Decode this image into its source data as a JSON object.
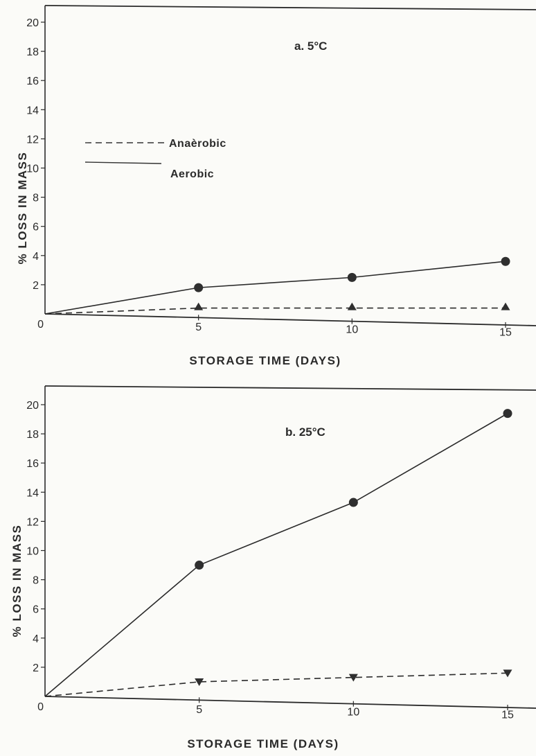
{
  "chart_data": [
    {
      "type": "line",
      "title": "a. 5°C",
      "xlabel": "STORAGE TIME (DAYS)",
      "ylabel": "% LOSS IN MASS",
      "xlim": [
        0,
        15
      ],
      "ylim": [
        0,
        20
      ],
      "xticks": [
        "0",
        "5",
        "10",
        "15"
      ],
      "yticks": [
        "2",
        "4",
        "6",
        "8",
        "10",
        "12",
        "14",
        "16",
        "18",
        "20"
      ],
      "legend": [
        {
          "label": "Anaèrobic",
          "style": "dashed"
        },
        {
          "label": "Aerobic",
          "style": "solid"
        }
      ],
      "series": [
        {
          "name": "Aerobic",
          "style": "solid",
          "marker": "circle",
          "x": [
            0,
            5,
            10,
            15
          ],
          "y": [
            0,
            1.8,
            2.5,
            3.6
          ]
        },
        {
          "name": "Anaèrobic",
          "style": "dashed",
          "marker": "triangle-up",
          "x": [
            0,
            5,
            10,
            15
          ],
          "y": [
            0,
            0.4,
            0.4,
            0.4
          ]
        }
      ]
    },
    {
      "type": "line",
      "title": "b. 25°C",
      "xlabel": "STORAGE TIME (DAYS)",
      "ylabel": "% LOSS IN MASS",
      "xlim": [
        0,
        15
      ],
      "ylim": [
        0,
        20
      ],
      "xticks": [
        "0",
        "5",
        "10",
        "15"
      ],
      "yticks": [
        "2",
        "4",
        "6",
        "8",
        "10",
        "12",
        "14",
        "16",
        "18",
        "20"
      ],
      "series": [
        {
          "name": "Aerobic",
          "style": "solid",
          "marker": "circle",
          "x": [
            0,
            5,
            10,
            15
          ],
          "y": [
            0,
            9.0,
            13.3,
            19.4
          ]
        },
        {
          "name": "Anaèrobic",
          "style": "dashed",
          "marker": "triangle-down",
          "x": [
            0,
            5,
            10,
            15
          ],
          "y": [
            0,
            1.0,
            1.3,
            1.6
          ]
        }
      ]
    }
  ]
}
